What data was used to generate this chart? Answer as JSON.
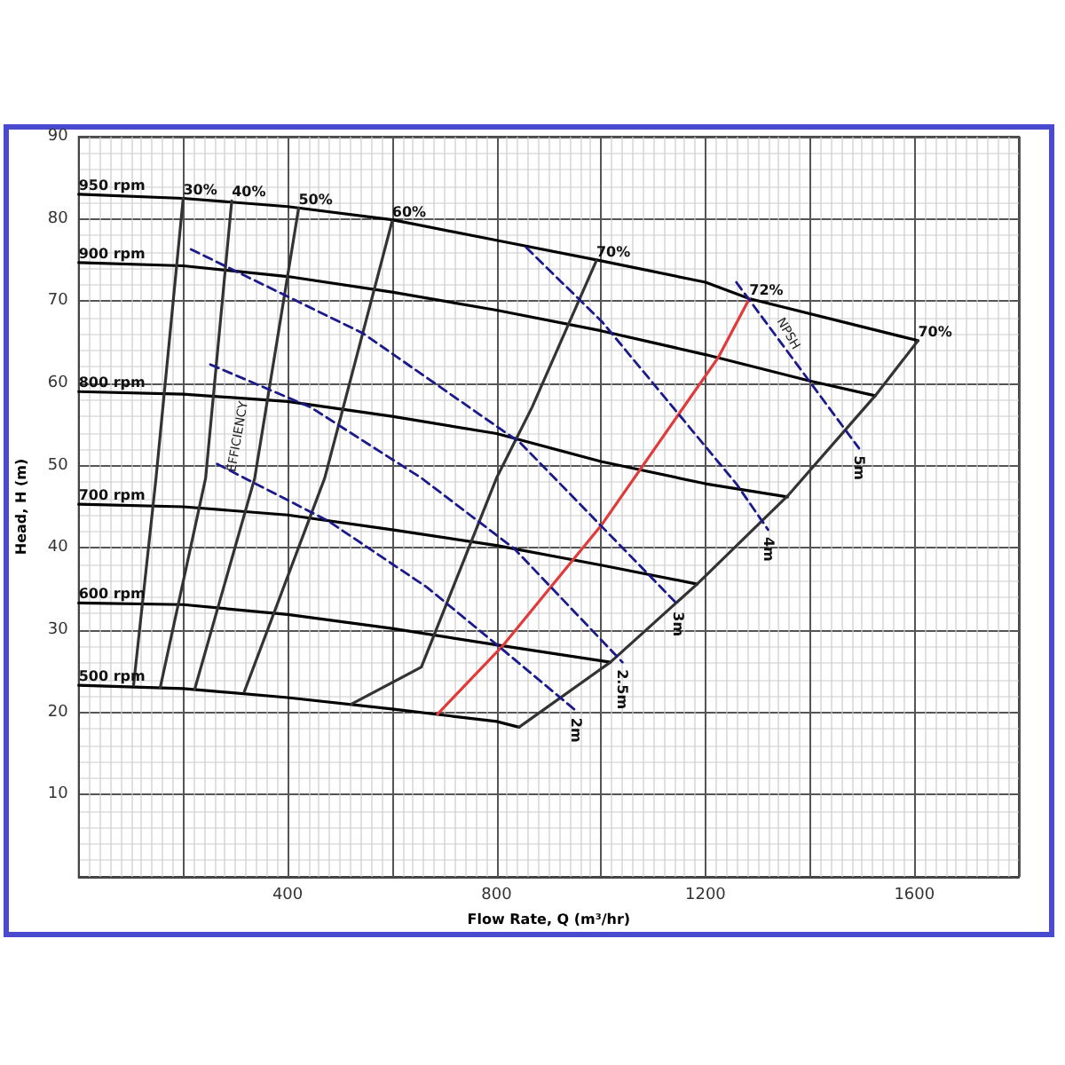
{
  "chart_data": {
    "type": "line",
    "xlabel": "Flow Rate, Q (m³/hr)",
    "ylabel": "Head, H (m)",
    "xlim": [
      0,
      1800
    ],
    "ylim": [
      0,
      90
    ],
    "xticks": [
      {
        "value": 0,
        "label": null
      },
      {
        "value": 200,
        "label": null
      },
      400,
      {
        "value": 600,
        "label": null
      },
      800,
      {
        "value": 1000,
        "label": null
      },
      1200,
      {
        "value": 1400,
        "label": null
      },
      1600,
      {
        "value": 1800,
        "label": null
      }
    ],
    "yticks": [
      {
        "value": 0,
        "label": null
      },
      10,
      20,
      30,
      40,
      50,
      60,
      70,
      80,
      90
    ],
    "grid": true,
    "legend": false,
    "marker": "none",
    "annotations": [
      "EFFICIENCY",
      "NPSH"
    ],
    "series": [
      {
        "name": "950 rpm",
        "color": "#000000",
        "line_style": "solid",
        "x": [
          0,
          200,
          400,
          600,
          800,
          1000,
          1200,
          1284,
          1607
        ],
        "values": [
          83,
          82.5,
          81.5,
          79.9,
          77.4,
          74.9,
          72.3,
          70.3,
          65.2
        ]
      },
      {
        "name": "900 rpm",
        "color": "#000000",
        "line_style": "solid",
        "x": [
          0,
          200,
          400,
          600,
          800,
          1000,
          1200,
          1400,
          1525
        ],
        "values": [
          74.7,
          74.3,
          73,
          71.1,
          68.9,
          66.4,
          63.5,
          60.3,
          58.5
        ]
      },
      {
        "name": "800 rpm",
        "color": "#000000",
        "line_style": "solid",
        "x": [
          0,
          200,
          400,
          600,
          800,
          1000,
          1200,
          1357
        ],
        "values": [
          59,
          58.7,
          57.8,
          56,
          53.9,
          50.5,
          47.8,
          46.2
        ]
      },
      {
        "name": "700 rpm",
        "color": "#000000",
        "line_style": "solid",
        "x": [
          0,
          200,
          400,
          600,
          800,
          1000,
          1184
        ],
        "values": [
          45.3,
          45,
          44,
          42.2,
          40.3,
          37.9,
          35.6
        ]
      },
      {
        "name": "600 rpm",
        "color": "#000000",
        "line_style": "solid",
        "x": [
          0,
          200,
          400,
          600,
          800,
          1018
        ],
        "values": [
          33.3,
          33.1,
          31.9,
          30.2,
          28.2,
          26.1
        ]
      },
      {
        "name": "500 rpm",
        "color": "#000000",
        "line_style": "solid",
        "x": [
          0,
          200,
          400,
          600,
          800,
          843
        ],
        "values": [
          23.3,
          22.9,
          21.8,
          20.4,
          18.9,
          18.2
        ]
      },
      {
        "name": "30%",
        "color": "#333333",
        "line_style": "solid",
        "x": [
          105,
          148,
          200
        ],
        "values": [
          23.3,
          48.5,
          82.5
        ]
      },
      {
        "name": "40%",
        "color": "#333333",
        "line_style": "solid",
        "x": [
          156,
          243,
          293
        ],
        "values": [
          23,
          48.5,
          82.2
        ]
      },
      {
        "name": "50%",
        "color": "#333333",
        "line_style": "solid",
        "x": [
          222,
          337,
          421
        ],
        "values": [
          22.8,
          48.5,
          81.3
        ]
      },
      {
        "name": "60%",
        "color": "#333333",
        "line_style": "solid",
        "x": [
          317,
          471,
          600
        ],
        "values": [
          22.5,
          48.5,
          79.7
        ]
      },
      {
        "name": "70%",
        "color": "#333333",
        "line_style": "solid",
        "x": [
          522,
          656,
          800,
          868,
          991
        ],
        "values": [
          21,
          25.5,
          48.5,
          57.1,
          74.9
        ]
      },
      {
        "name": "72%",
        "color": "#e03a3a",
        "line_style": "solid",
        "x": [
          687,
          812,
          1000,
          1225,
          1284
        ],
        "values": [
          19.8,
          28.1,
          42.7,
          63.2,
          70.3
        ]
      },
      {
        "name": "70%",
        "color": "#333333",
        "line_style": "solid",
        "x": [
          843,
          1018,
          1184,
          1357,
          1525,
          1607
        ],
        "values": [
          18.2,
          26.1,
          35.6,
          46.3,
          58.5,
          65.2
        ]
      },
      {
        "name": "2m",
        "color": "#1a1a8a",
        "line_style": "dashed",
        "x": [
          265,
          477,
          667,
          801,
          952
        ],
        "values": [
          50.2,
          43.3,
          35.2,
          28.2,
          20.2
        ]
      },
      {
        "name": "2.5m",
        "color": "#1a1a8a",
        "line_style": "dashed",
        "x": [
          252,
          444,
          656,
          834,
          1041
        ],
        "values": [
          62.3,
          57.1,
          48.5,
          39.9,
          26.1
        ]
      },
      {
        "name": "3m",
        "color": "#1a1a8a",
        "line_style": "dashed",
        "x": [
          215,
          544,
          845,
          1147
        ],
        "values": [
          76.3,
          66.1,
          52.8,
          33.1
        ]
      },
      {
        "name": "4m",
        "color": "#1a1a8a",
        "line_style": "dashed",
        "x": [
          857,
          1002,
          1259,
          1320
        ],
        "values": [
          76.5,
          67.5,
          47.8,
          42.2
        ]
      },
      {
        "name": "5m",
        "color": "#1a1a8a",
        "line_style": "dashed",
        "x": [
          1259,
          1494
        ],
        "values": [
          72.3,
          52.1
        ]
      }
    ]
  }
}
